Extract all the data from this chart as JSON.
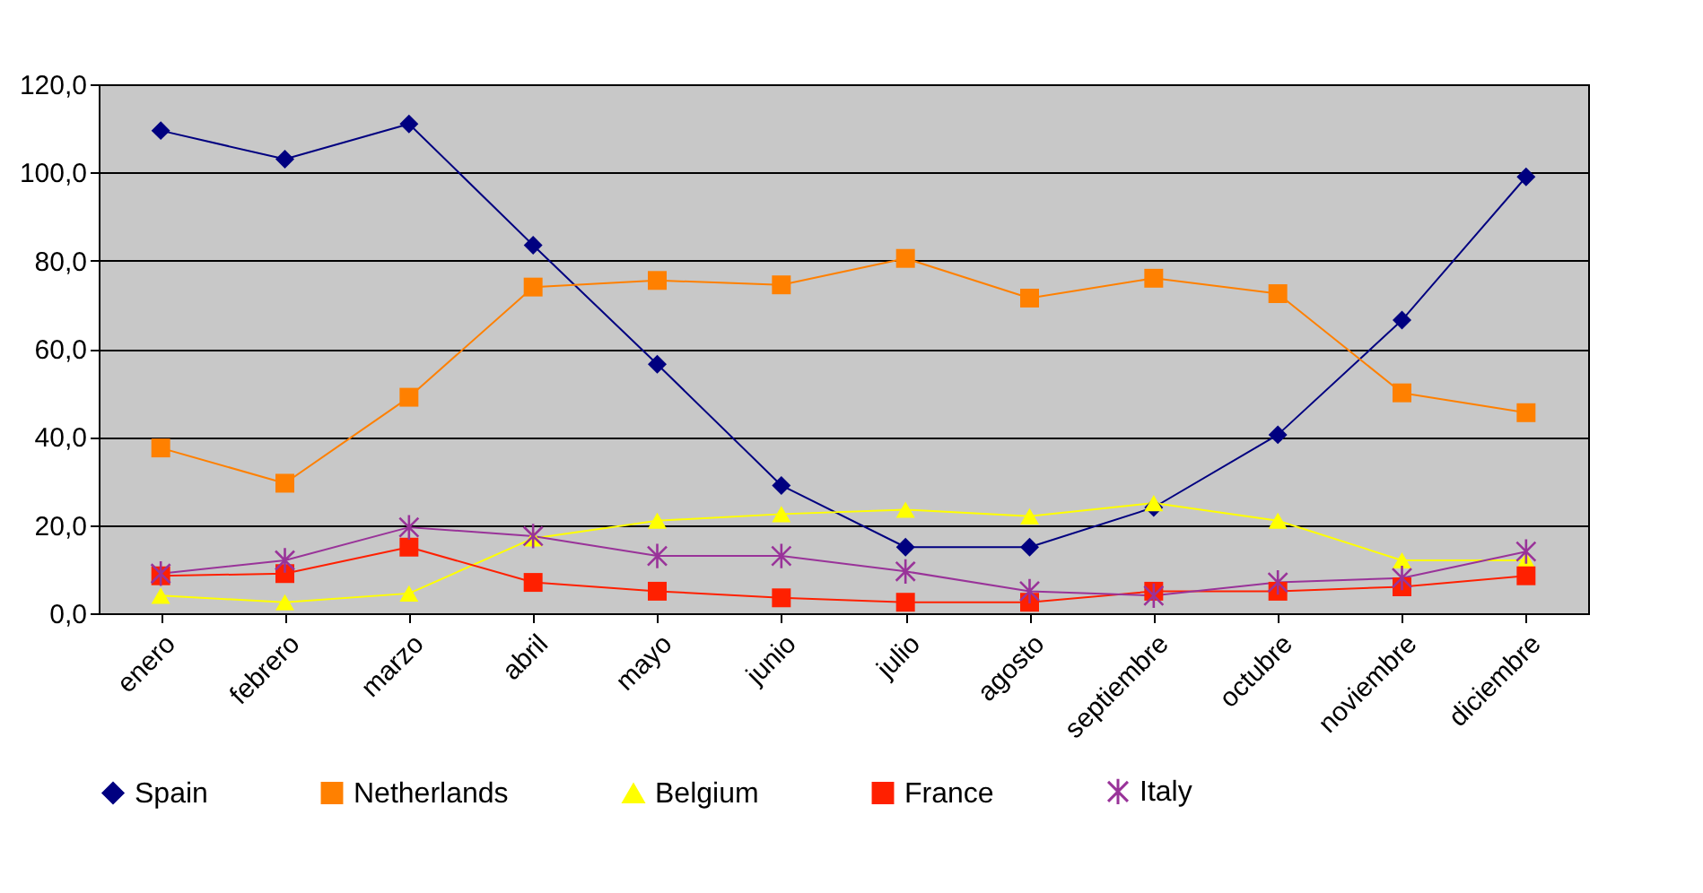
{
  "chart_data": {
    "type": "line",
    "categories": [
      "enero",
      "febrero",
      "marzo",
      "abril",
      "mayo",
      "junio",
      "julio",
      "agosto",
      "septiembre",
      "octubre",
      "noviembre",
      "diciembre"
    ],
    "series": [
      {
        "name": "Spain",
        "color": "#000080",
        "marker": "diamond",
        "values": [
          109.5,
          103,
          111,
          83.5,
          56.5,
          29,
          15,
          15,
          24,
          40.5,
          66.5,
          99
        ]
      },
      {
        "name": "Netherlands",
        "color": "#ff8000",
        "marker": "square",
        "values": [
          37.5,
          29.5,
          49,
          74,
          75.5,
          74.5,
          80.5,
          71.5,
          76,
          72.5,
          50,
          45.5
        ]
      },
      {
        "name": "Belgium",
        "color": "#ffff00",
        "marker": "triangle",
        "values": [
          4,
          2.5,
          4.5,
          17,
          21,
          22.5,
          23.5,
          22,
          25,
          21,
          12,
          12
        ]
      },
      {
        "name": "France",
        "color": "#ff2000",
        "marker": "square",
        "values": [
          8.5,
          9,
          15,
          7,
          5,
          3.5,
          2.5,
          2.5,
          5,
          5,
          6,
          8.5
        ]
      },
      {
        "name": "Italy",
        "color": "#993399",
        "marker": "cross",
        "values": [
          9,
          12,
          19.5,
          17.5,
          13,
          13,
          9.5,
          5,
          4,
          7,
          8,
          14
        ]
      }
    ],
    "ylim": [
      0,
      120
    ],
    "yticks": [
      {
        "value": 0,
        "label": "0,0"
      },
      {
        "value": 20,
        "label": "20,0"
      },
      {
        "value": 40,
        "label": "40,0"
      },
      {
        "value": 60,
        "label": "60,0"
      },
      {
        "value": 80,
        "label": "80,0"
      },
      {
        "value": 100,
        "label": "100,0"
      },
      {
        "value": 120,
        "label": "120,0"
      }
    ],
    "grid": "y",
    "legend": "bottom",
    "line_style": "solid"
  }
}
